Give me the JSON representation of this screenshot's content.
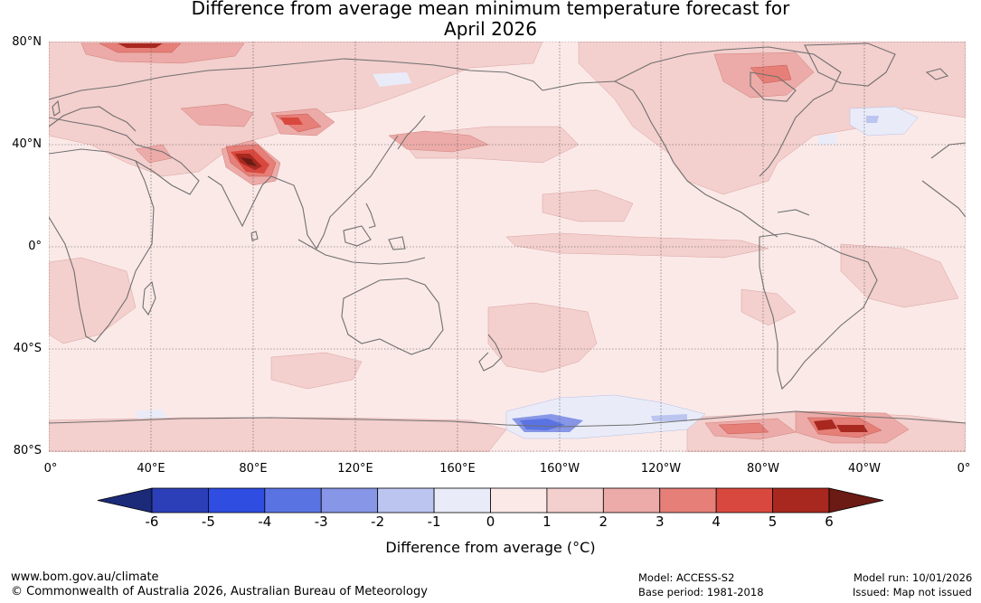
{
  "title_line1": "Difference from average mean minimum temperature forecast for",
  "title_line2": "April 2026",
  "lat_ticks": [
    "80°N",
    "40°N",
    "0°",
    "40°S",
    "80°S"
  ],
  "lon_ticks": [
    "0°",
    "40°E",
    "80°E",
    "120°E",
    "160°E",
    "160°W",
    "120°W",
    "80°W",
    "40°W",
    "0°"
  ],
  "colorbar": {
    "ticks": [
      "-6",
      "-5",
      "-4",
      "-3",
      "-2",
      "-1",
      "0",
      "1",
      "2",
      "3",
      "4",
      "5",
      "6"
    ],
    "colors": [
      "#1c2a7a",
      "#2c3fb8",
      "#2f4de0",
      "#5a73e3",
      "#8796e6",
      "#bcc5f0",
      "#e9ecf8",
      "#fbe9e8",
      "#f3cfcd",
      "#ecaba8",
      "#e57f78",
      "#d9483e",
      "#a8281f",
      "#6b1a14"
    ],
    "label": "Difference from average (°C)"
  },
  "footer": {
    "website": "www.bom.gov.au/climate",
    "copyright": "© Commonwealth of Australia 2026, Australian Bureau of Meteorology",
    "model": "Model: ACCESS-S2",
    "base_period": "Base period: 1981-2018",
    "model_run": "Model run: 10/01/2026",
    "issued": "Issued: Map not issued"
  }
}
